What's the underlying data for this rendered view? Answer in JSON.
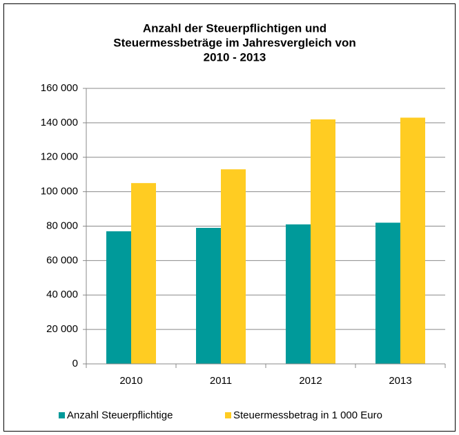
{
  "chart_data": {
    "type": "bar",
    "title": [
      "Anzahl der Steuerpflichtigen und",
      "Steuermessbeträge im Jahresvergleich von",
      "2010 - 2013"
    ],
    "categories": [
      "2010",
      "2011",
      "2012",
      "2013"
    ],
    "series": [
      {
        "name": "Anzahl Steuerpflichtige",
        "color": "#009a9a",
        "values": [
          77000,
          79000,
          81000,
          82000
        ]
      },
      {
        "name": "Steuermessbetrag in 1 000 Euro",
        "color": "#ffcc22",
        "values": [
          105000,
          113000,
          142000,
          143000
        ]
      }
    ],
    "ylim": [
      0,
      160000
    ],
    "yticks": [
      0,
      {
        "value": 20000,
        "label": "20 000"
      },
      {
        "value": 40000,
        "label": "40 000"
      },
      {
        "value": 60000,
        "label": "60 000"
      },
      {
        "value": 80000,
        "label": "80 000"
      },
      {
        "value": 100000,
        "label": "100 000"
      },
      {
        "value": 120000,
        "label": "120 000"
      },
      {
        "value": 140000,
        "label": "140 000"
      },
      {
        "value": 160000,
        "label": "160 000"
      }
    ],
    "grid": true,
    "legend": "bottom"
  }
}
